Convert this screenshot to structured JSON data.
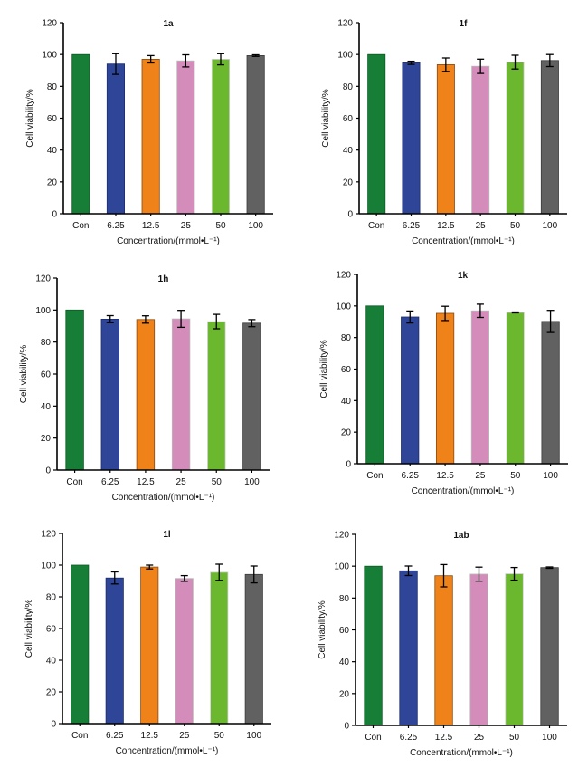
{
  "figure": {
    "colors": {
      "Con": "#167e36",
      "6.25": "#2f4598",
      "12.5": "#ef8319",
      "25": "#d48cba",
      "50": "#6bb82f",
      "100": "#616161"
    },
    "outline_colors": {
      "Con": "#0d5a24",
      "6.25": "#1c2c6b",
      "12.5": "#8a4a10",
      "25": "#b9b9b9",
      "50": "#cfcfcf",
      "100": "#3a3a3a"
    }
  },
  "chart_data": [
    {
      "id": "1a",
      "type": "bar",
      "title": "1a",
      "xlabel": "Concentration/(mmol•L⁻¹)",
      "ylabel": "Cell viability/%",
      "categories": [
        "Con",
        "6.25",
        "12.5",
        "25",
        "50",
        "100"
      ],
      "values": [
        100,
        94.0,
        97.0,
        96.0,
        97.0,
        99.3
      ],
      "errors": [
        0,
        6.5,
        2.3,
        3.8,
        3.5,
        0.5
      ],
      "yticks": [
        0,
        20,
        40,
        60,
        80,
        100,
        120
      ],
      "ylim": [
        0,
        120
      ],
      "grid": false
    },
    {
      "id": "1f",
      "type": "bar",
      "title": "1f",
      "xlabel": "Concentration/(mmol•L⁻¹)",
      "ylabel": "Cell viability/%",
      "categories": [
        "Con",
        "6.25",
        "12.5",
        "25",
        "50",
        "100"
      ],
      "values": [
        100,
        94.8,
        93.6,
        92.6,
        95.2,
        96.2
      ],
      "errors": [
        0,
        1.0,
        4.2,
        4.5,
        4.3,
        3.8
      ],
      "yticks": [
        0,
        20,
        40,
        60,
        80,
        100,
        120
      ],
      "ylim": [
        0,
        120
      ],
      "grid": false
    },
    {
      "id": "1h",
      "type": "bar",
      "title": "1h",
      "xlabel": "Concentration/(mmol•L⁻¹)",
      "ylabel": "Cell viability/%",
      "categories": [
        "Con",
        "6.25",
        "12.5",
        "25",
        "50",
        "100"
      ],
      "values": [
        100,
        94.3,
        94.1,
        94.5,
        92.8,
        91.8
      ],
      "errors": [
        0,
        2.2,
        2.3,
        5.3,
        4.5,
        2.2
      ],
      "yticks": [
        0,
        20,
        40,
        60,
        80,
        100,
        120
      ],
      "ylim": [
        0,
        120
      ],
      "grid": false
    },
    {
      "id": "1k",
      "type": "bar",
      "title": "1k",
      "xlabel": "Concentration/(mmol•L⁻¹)",
      "ylabel": "Cell viability/%",
      "categories": [
        "Con",
        "6.25",
        "12.5",
        "25",
        "50",
        "100"
      ],
      "values": [
        100,
        93.0,
        95.3,
        96.9,
        95.9,
        90.2
      ],
      "errors": [
        0,
        3.8,
        4.5,
        4.2,
        0.3,
        7.0
      ],
      "yticks": [
        0,
        20,
        40,
        60,
        80,
        100,
        120
      ],
      "ylim": [
        0,
        120
      ],
      "grid": false
    },
    {
      "id": "1l",
      "type": "bar",
      "title": "1l",
      "xlabel": "Concentration/(mmol•L⁻¹)",
      "ylabel": "Cell viability/%",
      "categories": [
        "Con",
        "6.25",
        "12.5",
        "25",
        "50",
        "100"
      ],
      "values": [
        100,
        91.9,
        98.8,
        91.6,
        95.5,
        94.1
      ],
      "errors": [
        0,
        3.8,
        1.2,
        1.8,
        5.1,
        5.3
      ],
      "yticks": [
        0,
        20,
        40,
        60,
        80,
        100,
        120
      ],
      "ylim": [
        0,
        120
      ],
      "grid": false
    },
    {
      "id": "1ab",
      "type": "bar",
      "title": "1ab",
      "xlabel": "Concentration/(mmol•L⁻¹)",
      "ylabel": "Cell viability/%",
      "categories": [
        "Con",
        "6.25",
        "12.5",
        "25",
        "50",
        "100"
      ],
      "values": [
        100,
        97.1,
        94.0,
        95.0,
        95.2,
        99.1
      ],
      "errors": [
        0,
        3.0,
        7.0,
        4.4,
        4.0,
        0.4
      ],
      "yticks": [
        0,
        20,
        40,
        60,
        80,
        100,
        120
      ],
      "ylim": [
        0,
        120
      ],
      "grid": false
    }
  ]
}
